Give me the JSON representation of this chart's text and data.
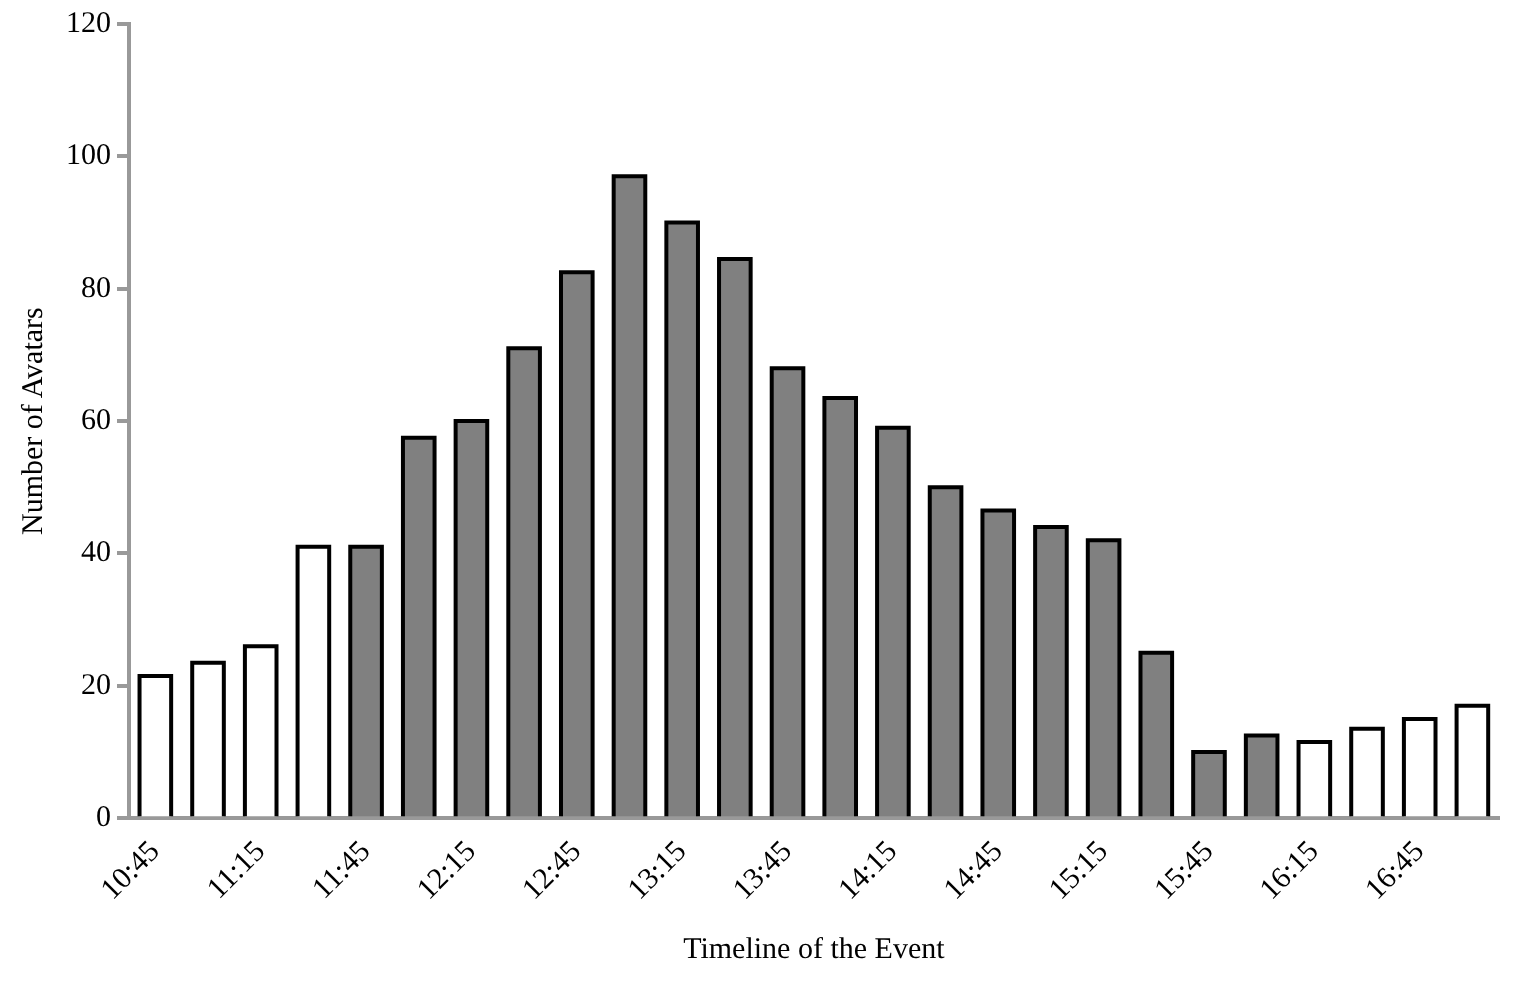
{
  "chart_data": {
    "type": "bar",
    "xlabel": "Timeline of the Event",
    "ylabel": "Number of Avatars",
    "categories": [
      "10:45",
      null,
      "11:15",
      null,
      "11:45",
      null,
      "12:15",
      null,
      "12:45",
      null,
      "13:15",
      null,
      "13:45",
      null,
      "14:15",
      null,
      "14:45",
      null,
      "15:15",
      null,
      "15:45",
      null,
      "16:15",
      null,
      "16:45",
      null
    ],
    "values": [
      21.5,
      23.5,
      26,
      41,
      41,
      57.5,
      60,
      71,
      82.5,
      97,
      90,
      84.5,
      68,
      63.5,
      59,
      50,
      46.5,
      44,
      42,
      25,
      10,
      12.5,
      11.5,
      13.5,
      15,
      17
    ],
    "colors": [
      "#ffffff",
      "#ffffff",
      "#ffffff",
      "#ffffff",
      "#808080",
      "#808080",
      "#808080",
      "#808080",
      "#808080",
      "#808080",
      "#808080",
      "#808080",
      "#808080",
      "#808080",
      "#808080",
      "#808080",
      "#808080",
      "#808080",
      "#808080",
      "#808080",
      "#808080",
      "#808080",
      "#ffffff",
      "#ffffff",
      "#ffffff",
      "#ffffff"
    ],
    "ylim": [
      0,
      120
    ],
    "yticks": [
      0,
      20,
      40,
      60,
      80,
      100,
      120
    ],
    "grid": false,
    "legend": false
  }
}
